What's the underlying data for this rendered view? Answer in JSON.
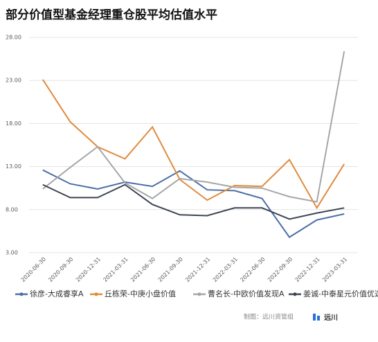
{
  "chart_data": {
    "type": "line",
    "title": "部分价值型基金经理重仓股平均估值水平",
    "categories": [
      "2020-06-30",
      "2020-09-30",
      "2020-12-31",
      "2021-03-31",
      "2021-06-30",
      "2021-09-30",
      "2021-12-31",
      "2022-03-31",
      "2022-06-30",
      "2022-09-30",
      "2022-12-31",
      "2023-03-31"
    ],
    "series": [
      {
        "name": "徐彦-大成睿享A",
        "color": "#4a6fa8",
        "values": [
          12.6,
          11.0,
          10.4,
          11.2,
          10.7,
          12.5,
          10.3,
          10.2,
          9.3,
          4.8,
          6.8,
          7.5
        ]
      },
      {
        "name": "丘栋荣-中庚小盘价值",
        "color": "#e08a3c",
        "values": [
          23.1,
          18.2,
          15.3,
          13.9,
          17.6,
          11.5,
          9.1,
          10.8,
          10.7,
          13.8,
          8.2,
          13.3
        ]
      },
      {
        "name": "曹名长-中欧价值发现A",
        "color": "#a6a6a6",
        "values": [
          10.4,
          12.9,
          15.3,
          11.1,
          9.3,
          11.6,
          11.2,
          10.6,
          10.5,
          9.5,
          8.9,
          26.4
        ]
      },
      {
        "name": "姜诚-中泰星元价值优选A",
        "color": "#3d4452",
        "values": [
          10.9,
          9.4,
          9.4,
          10.9,
          8.6,
          7.4,
          7.3,
          8.2,
          8.2,
          6.9,
          7.6,
          8.2
        ]
      }
    ],
    "ylim": [
      3,
      28
    ],
    "yticks": [
      {
        "value": 3,
        "label": "3.00"
      },
      {
        "value": 8,
        "label": "8.00"
      },
      {
        "value": 13,
        "label": "13.00"
      },
      {
        "value": 18,
        "label": "18.00"
      },
      {
        "value": 23,
        "label": "23.00"
      },
      {
        "value": 28,
        "label": "28.00"
      }
    ],
    "grid": true,
    "legend": "bottom",
    "credit": "制图：远川资管组",
    "logo": "远川"
  }
}
